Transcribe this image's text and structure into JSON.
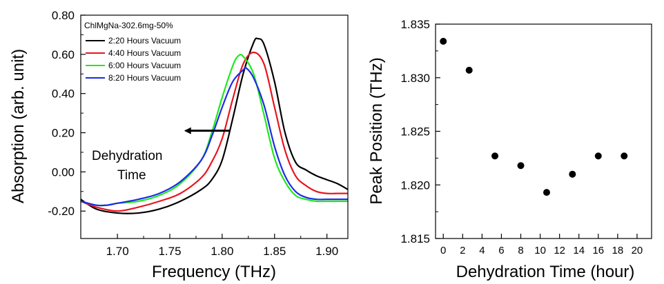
{
  "chart_data": [
    {
      "type": "line",
      "xlabel": "Frequency (THz)",
      "ylabel": "Absorption (arb. unit)",
      "xlim": [
        1.665,
        1.92
      ],
      "ylim": [
        -0.34,
        0.8
      ],
      "xticks": [
        1.7,
        1.75,
        1.8,
        1.85,
        1.9
      ],
      "xtick_labels": [
        "1.70",
        "1.75",
        "1.80",
        "1.85",
        "1.90"
      ],
      "yticks": [
        -0.2,
        0.0,
        0.2,
        0.4,
        0.6,
        0.8
      ],
      "ytick_labels": [
        "-0.20",
        "0.00",
        "0.20",
        "0.40",
        "0.60",
        "0.80"
      ],
      "legend_title": "ChlMgNa-302.6mg-50%",
      "legend_position": "top-left",
      "annotation": {
        "line1": "Dehydration",
        "line2": "Time",
        "arrow_from_x": 1.807,
        "arrow_to_x": 1.765,
        "arrow_y": 0.21
      },
      "series": [
        {
          "name": "2:20 Hours Vacuum",
          "color": "#000000",
          "x": [
            1.665,
            1.68,
            1.7,
            1.72,
            1.74,
            1.76,
            1.78,
            1.79,
            1.8,
            1.81,
            1.82,
            1.83,
            1.834,
            1.84,
            1.85,
            1.86,
            1.87,
            1.88,
            1.89,
            1.9,
            1.91,
            1.92
          ],
          "y": [
            -0.14,
            -0.19,
            -0.21,
            -0.21,
            -0.19,
            -0.15,
            -0.09,
            -0.04,
            0.06,
            0.27,
            0.5,
            0.66,
            0.68,
            0.65,
            0.46,
            0.2,
            0.05,
            0.01,
            -0.02,
            -0.04,
            -0.06,
            -0.09
          ]
        },
        {
          "name": "4:40 Hours Vacuum",
          "color": "#e8141e",
          "x": [
            1.665,
            1.68,
            1.7,
            1.72,
            1.74,
            1.76,
            1.78,
            1.79,
            1.8,
            1.81,
            1.82,
            1.83,
            1.84,
            1.85,
            1.86,
            1.87,
            1.88,
            1.89,
            1.9,
            1.91,
            1.92
          ],
          "y": [
            -0.15,
            -0.18,
            -0.2,
            -0.18,
            -0.15,
            -0.11,
            -0.03,
            0.05,
            0.17,
            0.37,
            0.55,
            0.61,
            0.55,
            0.33,
            0.11,
            -0.02,
            -0.07,
            -0.1,
            -0.11,
            -0.11,
            -0.11
          ]
        },
        {
          "name": "6:00 Hours Vacuum",
          "color": "#1ee81e",
          "x": [
            1.665,
            1.68,
            1.69,
            1.7,
            1.72,
            1.74,
            1.76,
            1.78,
            1.79,
            1.8,
            1.81,
            1.815,
            1.82,
            1.83,
            1.84,
            1.85,
            1.86,
            1.87,
            1.88,
            1.89,
            1.9,
            1.91,
            1.92
          ],
          "y": [
            -0.15,
            -0.17,
            -0.17,
            -0.16,
            -0.15,
            -0.12,
            -0.06,
            0.06,
            0.2,
            0.38,
            0.54,
            0.59,
            0.59,
            0.5,
            0.29,
            0.07,
            -0.05,
            -0.12,
            -0.14,
            -0.15,
            -0.15,
            -0.15,
            -0.15
          ]
        },
        {
          "name": "8:20 Hours Vacuum",
          "color": "#1e2ae8",
          "x": [
            1.665,
            1.68,
            1.69,
            1.7,
            1.72,
            1.74,
            1.76,
            1.78,
            1.79,
            1.8,
            1.81,
            1.82,
            1.823,
            1.83,
            1.84,
            1.85,
            1.86,
            1.87,
            1.88,
            1.89,
            1.9,
            1.91,
            1.92
          ],
          "y": [
            -0.15,
            -0.17,
            -0.17,
            -0.16,
            -0.14,
            -0.11,
            -0.05,
            0.06,
            0.18,
            0.33,
            0.46,
            0.52,
            0.53,
            0.48,
            0.34,
            0.13,
            -0.02,
            -0.1,
            -0.13,
            -0.14,
            -0.14,
            -0.14,
            -0.14
          ]
        }
      ]
    },
    {
      "type": "scatter",
      "xlabel": "Dehydration Time  (hour)",
      "ylabel": "Peak Position (THz)",
      "xlim": [
        -0.8,
        21.5
      ],
      "ylim": [
        1.815,
        1.835
      ],
      "xticks": [
        0,
        2,
        4,
        6,
        8,
        10,
        12,
        14,
        16,
        18,
        20
      ],
      "xtick_labels": [
        "0",
        "2",
        "4",
        "6",
        "8",
        "10",
        "12",
        "14",
        "16",
        "18",
        "20"
      ],
      "yticks": [
        1.815,
        1.82,
        1.825,
        1.83,
        1.835
      ],
      "ytick_labels": [
        "1.815",
        "1.820",
        "1.825",
        "1.830",
        "1.835"
      ],
      "x": [
        0,
        2.67,
        5.33,
        8.0,
        10.67,
        13.33,
        16.0,
        18.67
      ],
      "y": [
        1.8334,
        1.8307,
        1.8227,
        1.8218,
        1.8193,
        1.821,
        1.8227,
        1.8227
      ]
    }
  ]
}
